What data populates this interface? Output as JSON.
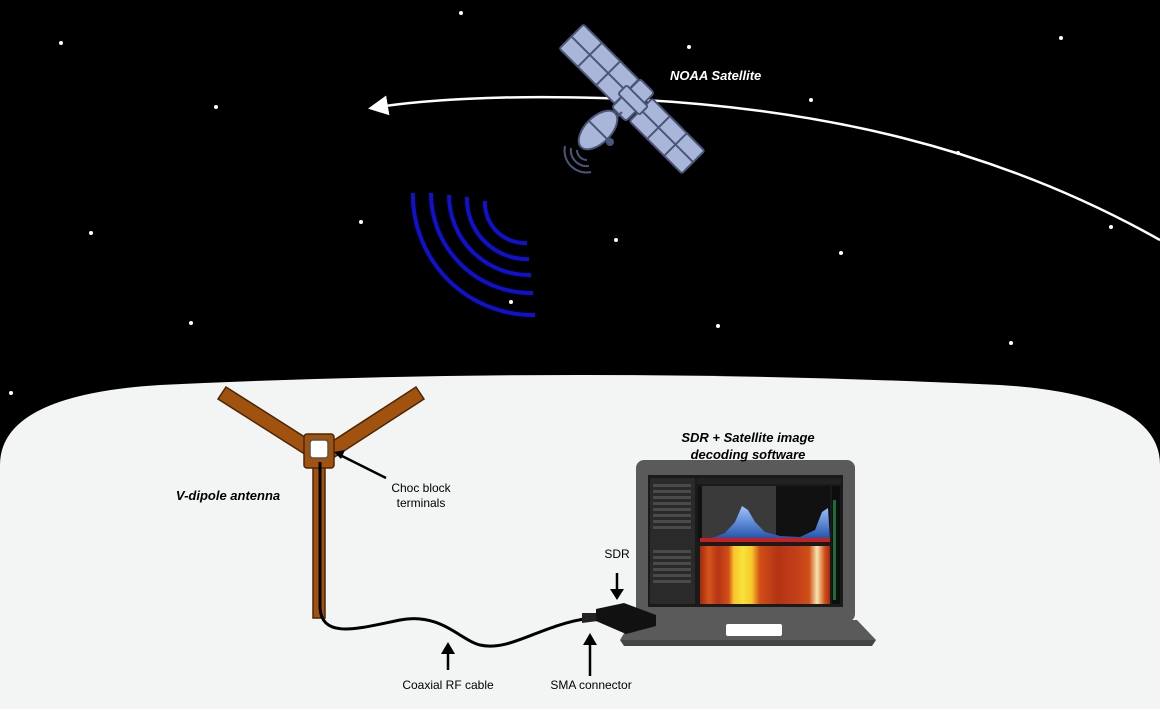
{
  "labels": {
    "satellite": "NOAA Satellite",
    "software_line1": "SDR + Satellite image",
    "software_line2": "decoding software",
    "antenna": "V-dipole antenna",
    "choc_line1": "Choc block",
    "choc_line2": "terminals",
    "sdr": "SDR",
    "coax": "Coaxial RF cable",
    "sma": "SMA connector"
  },
  "colors": {
    "sky": "#000000",
    "ground": "#f3f5f4",
    "antenna": "#a0520e",
    "signal": "#1010d0",
    "satellite_fill": "#a9b6d9",
    "satellite_stroke": "#4a5678",
    "laptop": "#5a5a5a",
    "orbit": "#ffffff"
  },
  "icons": {
    "satellite": "satellite-icon",
    "signal": "radio-waves-icon",
    "laptop": "laptop-icon",
    "dongle": "usb-sdr-dongle-icon"
  }
}
